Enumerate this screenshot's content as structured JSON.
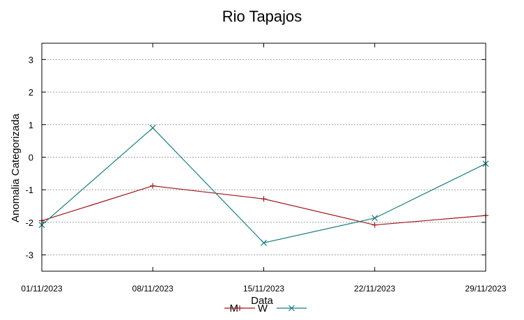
{
  "chart_data": {
    "type": "line",
    "title": "Rio Tapajos",
    "xlabel": "Data",
    "ylabel": "Anomalia Categorizada",
    "categories": [
      "01/11/2023",
      "08/11/2023",
      "15/11/2023",
      "22/11/2023",
      "29/11/2023"
    ],
    "yticks": [
      3,
      2,
      1,
      0,
      -1,
      -2,
      -3
    ],
    "ylim": [
      -3.5,
      3.5
    ],
    "grid": "horizontal-dotted",
    "legend_placement": "bottom-center",
    "series": [
      {
        "name": "M",
        "color": "#a0151b",
        "marker": "plus",
        "values": [
          -1.95,
          -0.88,
          -1.28,
          -2.08,
          -1.79
        ]
      },
      {
        "name": "W",
        "color": "#1c7b7f",
        "marker": "cross",
        "values": [
          -2.08,
          0.9,
          -2.63,
          -1.87,
          -0.2
        ]
      }
    ]
  }
}
